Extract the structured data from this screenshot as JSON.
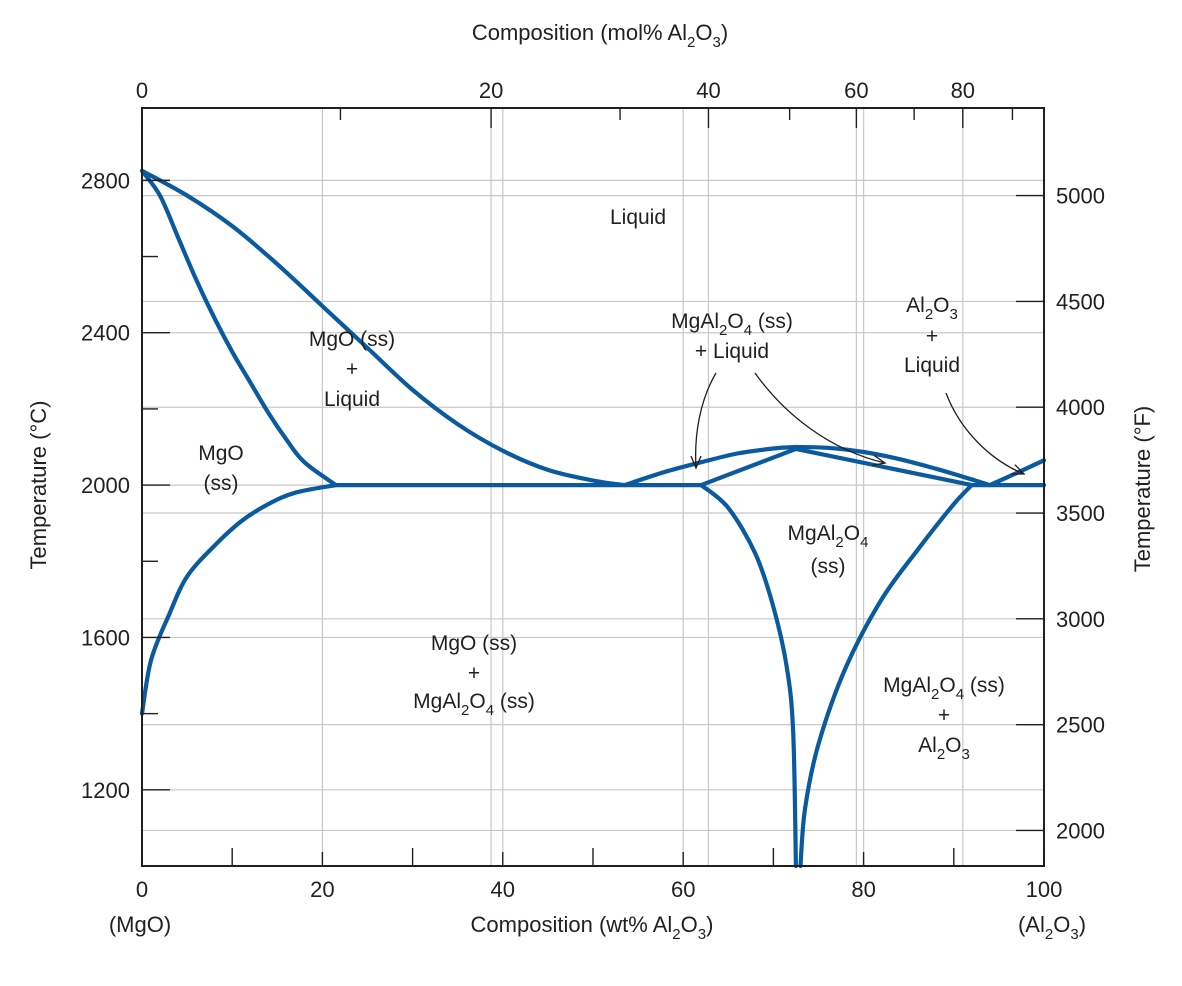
{
  "chart_data": {
    "type": "line",
    "title": "",
    "xlabel": "Composition (wt% Al2O3)",
    "xlabel_parts": [
      "Composition (wt% Al",
      "2",
      "O",
      "3",
      ")"
    ],
    "top_xlabel": "Composition (mol% Al2O3)",
    "top_xlabel_parts": [
      "Composition (mol% Al",
      "2",
      "O",
      "3",
      ")"
    ],
    "ylabel": "Temperature (°C)",
    "right_ylabel": "Temperature (°F)",
    "xlim": [
      0,
      100
    ],
    "ylim": [
      1000,
      2990
    ],
    "grid": true,
    "x_ticks": [
      0,
      20,
      40,
      60,
      80,
      100
    ],
    "x_minor_ticks": [
      10,
      30,
      50,
      70,
      90
    ],
    "x_end_labels": {
      "left": "(MgO)",
      "right_parts": [
        "(Al",
        "2",
        "O",
        "3",
        ")"
      ]
    },
    "y_ticks": [
      1200,
      1600,
      2000,
      2400,
      2800
    ],
    "y_minor_ticks": [
      1400,
      1800,
      2200,
      2600
    ],
    "top_ticks": [
      {
        "label": "0",
        "wt": 0
      },
      {
        "label": "20",
        "wt": 38.7
      },
      {
        "label": "40",
        "wt": 62.8
      },
      {
        "label": "60",
        "wt": 79.2
      },
      {
        "label": "80",
        "wt": 91.0
      }
    ],
    "top_minor_wt": [
      22.0,
      53.0,
      71.8,
      85.6,
      96.5
    ],
    "right_ticks_f": [
      2000,
      2500,
      3000,
      3500,
      4000,
      4500,
      5000
    ],
    "series": [
      {
        "id": "liquidus-mgo",
        "points": [
          [
            0,
            2825
          ],
          [
            5,
            2760
          ],
          [
            10,
            2680
          ],
          [
            15,
            2580
          ],
          [
            20,
            2470
          ],
          [
            25,
            2360
          ],
          [
            30,
            2250
          ],
          [
            35,
            2160
          ],
          [
            40,
            2090
          ],
          [
            45,
            2040
          ],
          [
            50,
            2012
          ],
          [
            53.5,
            2000
          ]
        ]
      },
      {
        "id": "solidus-mgo",
        "points": [
          [
            0,
            2825
          ],
          [
            2,
            2760
          ],
          [
            4,
            2650
          ],
          [
            6,
            2540
          ],
          [
            8,
            2440
          ],
          [
            10,
            2350
          ],
          [
            12,
            2270
          ],
          [
            14,
            2190
          ],
          [
            16,
            2120
          ],
          [
            18,
            2060
          ],
          [
            21.5,
            2000
          ]
        ]
      },
      {
        "id": "solvus-mgo",
        "points": [
          [
            0,
            1400
          ],
          [
            1,
            1540
          ],
          [
            3,
            1660
          ],
          [
            5,
            1760
          ],
          [
            8,
            1840
          ],
          [
            11,
            1905
          ],
          [
            14,
            1950
          ],
          [
            17,
            1980
          ],
          [
            21.5,
            2000
          ]
        ]
      },
      {
        "id": "eutectic-left",
        "points": [
          [
            21.5,
            2000
          ],
          [
            62,
            2000
          ]
        ]
      },
      {
        "id": "liquidus-spinel-left",
        "points": [
          [
            53.5,
            2000
          ],
          [
            58,
            2035
          ],
          [
            62,
            2060
          ],
          [
            66,
            2083
          ],
          [
            70,
            2096
          ],
          [
            72.5,
            2100
          ]
        ]
      },
      {
        "id": "liquidus-spinel-right",
        "points": [
          [
            72.5,
            2100
          ],
          [
            76,
            2098
          ],
          [
            80,
            2087
          ],
          [
            84,
            2068
          ],
          [
            88,
            2043
          ],
          [
            91,
            2022
          ],
          [
            94,
            2000
          ]
        ]
      },
      {
        "id": "solidus-spinel-left",
        "points": [
          [
            62,
            2000
          ],
          [
            72.5,
            2095
          ]
        ]
      },
      {
        "id": "solidus-spinel-right",
        "points": [
          [
            72.5,
            2095
          ],
          [
            92,
            2000
          ]
        ]
      },
      {
        "id": "eutectic-right",
        "points": [
          [
            92,
            2000
          ],
          [
            100,
            2000
          ]
        ]
      },
      {
        "id": "liquidus-al2o3",
        "points": [
          [
            94,
            2000
          ],
          [
            97,
            2032
          ],
          [
            100,
            2065
          ]
        ]
      },
      {
        "id": "solvus-spinel-left",
        "points": [
          [
            62,
            2000
          ],
          [
            65,
            1940
          ],
          [
            68,
            1820
          ],
          [
            70,
            1680
          ],
          [
            71.5,
            1520
          ],
          [
            72.2,
            1350
          ],
          [
            72.5,
            1000
          ]
        ]
      },
      {
        "id": "solvus-spinel-right",
        "points": [
          [
            73,
            1000
          ],
          [
            73.5,
            1150
          ],
          [
            75,
            1320
          ],
          [
            78,
            1520
          ],
          [
            82,
            1700
          ],
          [
            86,
            1830
          ],
          [
            90,
            1950
          ],
          [
            92,
            2000
          ]
        ]
      }
    ],
    "annotations": {
      "liquid": "Liquid",
      "mgo_ss_liquid": [
        "MgO (ss)",
        "+",
        "Liquid"
      ],
      "mgo_ss": [
        "MgO",
        "(ss)"
      ],
      "mgo_spinel": [
        "MgO (ss)",
        "+"
      ],
      "mgo_spinel_l3": [
        "MgAl",
        "2",
        "O",
        "4",
        " (ss)"
      ],
      "spinel_liquid_l1": [
        "MgAl",
        "2",
        "O",
        "4",
        " (ss)"
      ],
      "spinel_liquid_l2": "+ Liquid",
      "al2o3_liquid_l1": [
        "Al",
        "2",
        "O",
        "3"
      ],
      "al2o3_liquid_l2": "+",
      "al2o3_liquid_l3": "Liquid",
      "spinel_ss_l1": [
        "MgAl",
        "2",
        "O",
        "4"
      ],
      "spinel_ss_l2": "(ss)",
      "spinel_al2o3_l1": [
        "MgAl",
        "2",
        "O",
        "4",
        " (ss)"
      ],
      "spinel_al2o3_l2": "+",
      "spinel_al2o3_l3": [
        "Al",
        "2",
        "O",
        "3"
      ]
    },
    "colors": {
      "phase_line": "#0a5aa0",
      "grid": "#c8c8c8",
      "text": "#231f20"
    }
  }
}
